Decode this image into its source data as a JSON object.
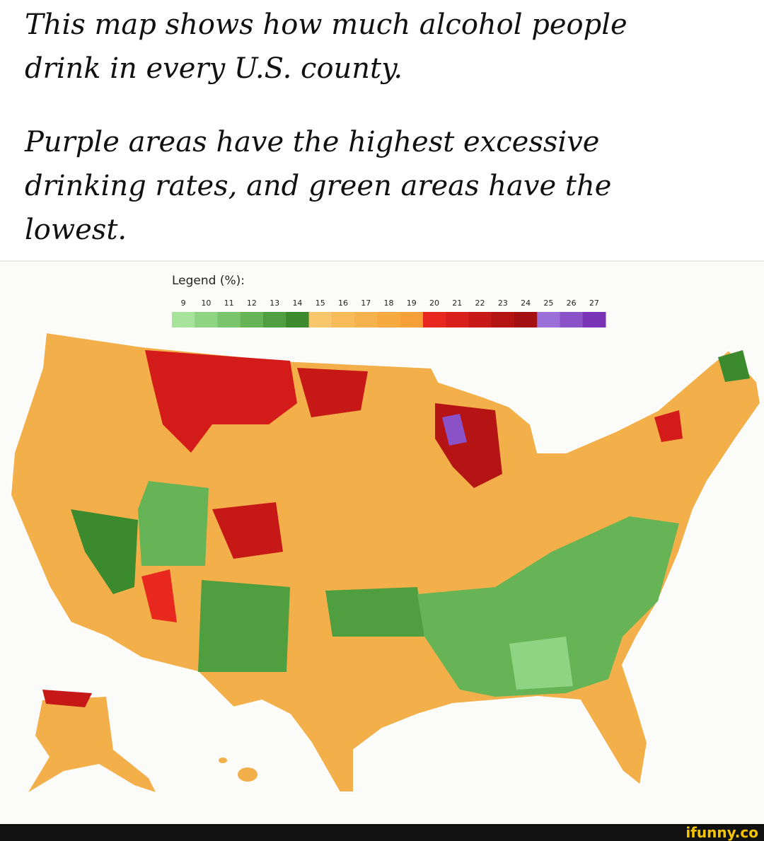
{
  "caption": {
    "paragraphs": [
      [
        "This map shows how much alcohol people",
        "drink in every U.S. county."
      ],
      [
        "Purple areas have the highest excessive",
        "drinking rates, and green areas have the",
        "lowest."
      ]
    ]
  },
  "legend": {
    "title": "Legend (%):",
    "items": [
      {
        "value": 9,
        "color": "#a6e39b"
      },
      {
        "value": 10,
        "color": "#8fd483"
      },
      {
        "value": 11,
        "color": "#7bc46c"
      },
      {
        "value": 12,
        "color": "#66b456"
      },
      {
        "value": 13,
        "color": "#4f9f40"
      },
      {
        "value": 14,
        "color": "#3b8a2e"
      },
      {
        "value": 15,
        "color": "#f9c56a"
      },
      {
        "value": 16,
        "color": "#f7bb5a"
      },
      {
        "value": 17,
        "color": "#f6b24c"
      },
      {
        "value": 18,
        "color": "#f5a93f"
      },
      {
        "value": 19,
        "color": "#f4a036"
      },
      {
        "value": 20,
        "color": "#e8271f"
      },
      {
        "value": 21,
        "color": "#d81f1c"
      },
      {
        "value": 22,
        "color": "#c71818"
      },
      {
        "value": 23,
        "color": "#b51414"
      },
      {
        "value": 24,
        "color": "#a31010"
      },
      {
        "value": 25,
        "color": "#9b6fd8"
      },
      {
        "value": 26,
        "color": "#8b52c8"
      },
      {
        "value": 27,
        "color": "#7a33b5"
      }
    ]
  },
  "watermark": "ifunny.co"
}
